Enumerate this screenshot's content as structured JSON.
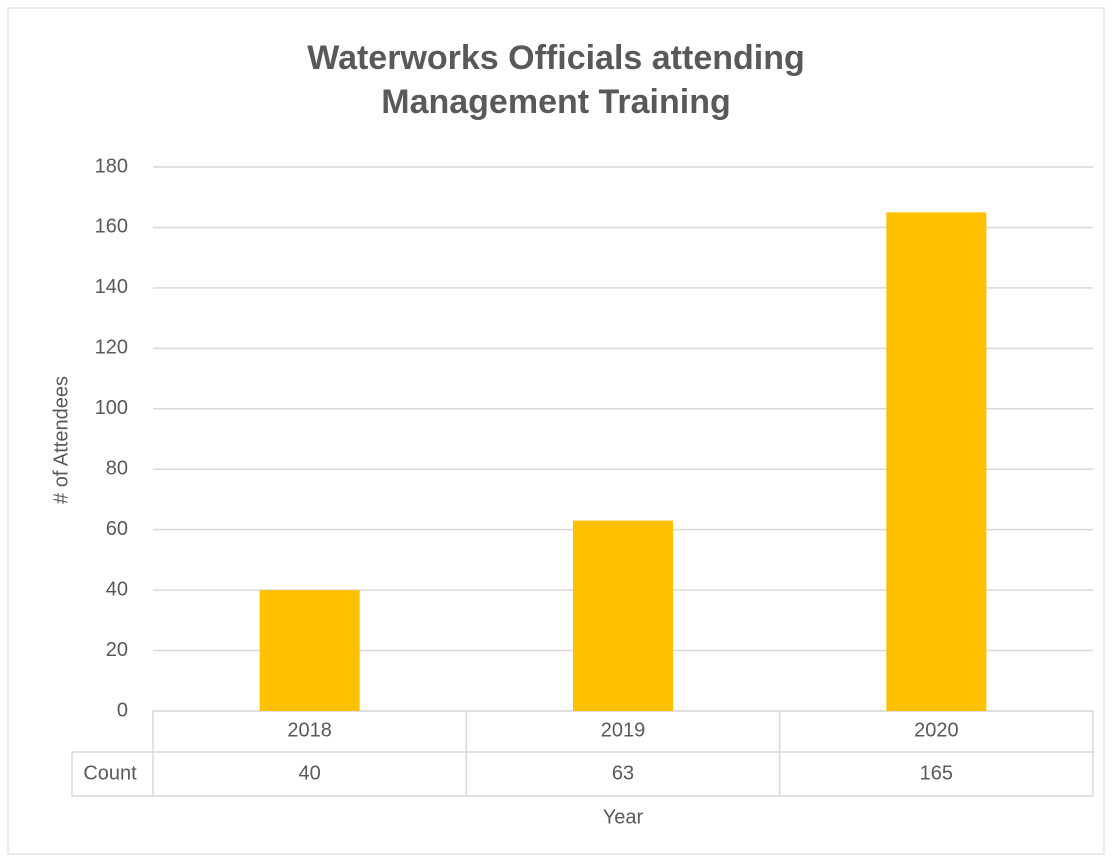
{
  "chart_data": {
    "type": "bar",
    "title": "Waterworks Officials attending Management Training",
    "x_label": "Year",
    "y_label": "# of Attendees",
    "categories": [
      "2018",
      "2019",
      "2020"
    ],
    "series": [
      {
        "name": "Count",
        "color": "#ffc000",
        "values": [
          40,
          63,
          165
        ]
      }
    ],
    "ylim": [
      0,
      180
    ],
    "yticks": [
      0,
      20,
      40,
      60,
      80,
      100,
      120,
      140,
      160,
      180
    ],
    "grid": true,
    "data_table": true
  }
}
